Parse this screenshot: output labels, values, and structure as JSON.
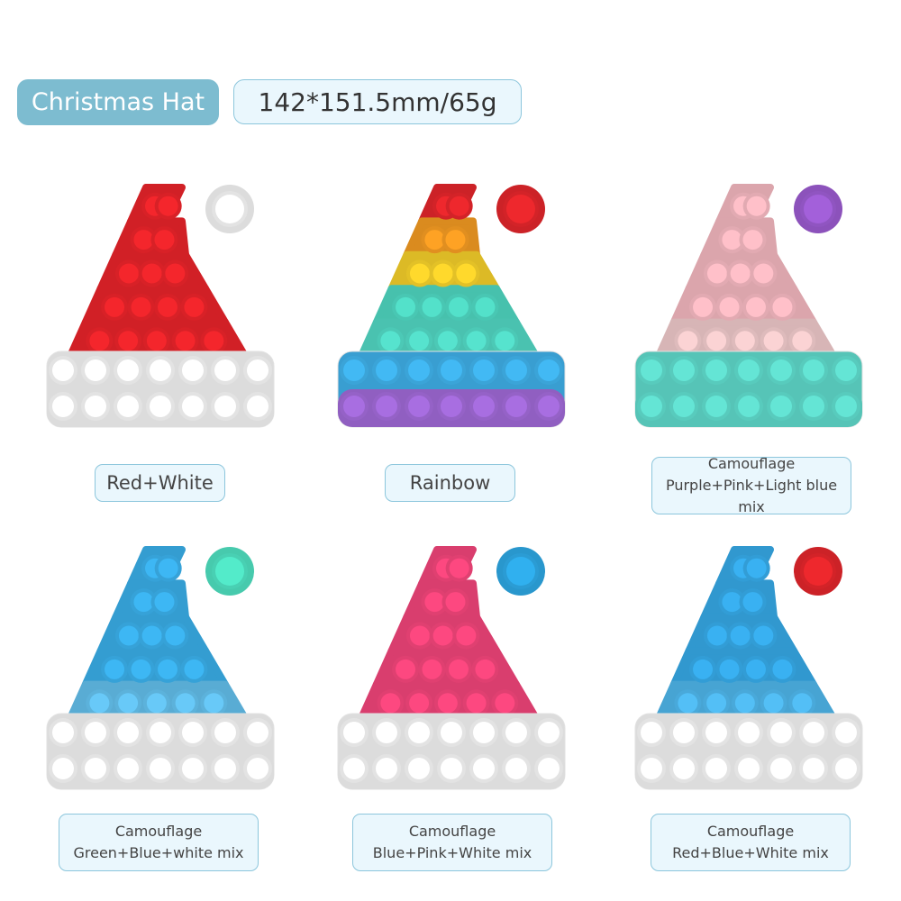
{
  "header": {
    "title": "Christmas Hat",
    "spec": "142*151.5mm/65g"
  },
  "products": [
    {
      "lines": [
        "Red+White"
      ],
      "rows": [
        "#e8242a",
        "#e8242a",
        "#e8242a",
        "#e8242a",
        "#e8242a"
      ],
      "band": [
        "#f4f4f4",
        "#f4f4f4"
      ],
      "bobble": "#f4f4f4"
    },
    {
      "lines": [
        "Rainbow"
      ],
      "rows": [
        "#e3262b",
        "#f29a22",
        "#f4cf2a",
        "#4fd6c0",
        "#52d8c4"
      ],
      "band": [
        "#3fb0e8",
        "#a069d6"
      ],
      "bobble": "#e3262b"
    },
    {
      "lines": [
        "Camouflage",
        "Purple+Pink+Light blue mix"
      ],
      "rows": [
        "#f3b7bf",
        "#f3b7bf",
        "#f3b7bf",
        "#f3b7bf",
        "#efc9ca"
      ],
      "band": [
        "#5fdacb",
        "#5fdacb"
      ],
      "bobble": "#9b5bd0"
    },
    {
      "lines": [
        "Camouflage",
        "Green+Blue+white mix"
      ],
      "rows": [
        "#3aaee8",
        "#3aaee8",
        "#3aaee8",
        "#3aaee8",
        "#63bfec"
      ],
      "band": [
        "#f4f4f4",
        "#f4f4f4"
      ],
      "bobble": "#4fe0c0"
    },
    {
      "lines": [
        "Camouflage",
        "Blue+Pink+White mix"
      ],
      "rows": [
        "#f1457a",
        "#f1457a",
        "#f1457a",
        "#f1457a",
        "#f1457a"
      ],
      "band": [
        "#f4f4f4",
        "#f4f4f4"
      ],
      "bobble": "#2ea8e4"
    },
    {
      "lines": [
        "Camouflage",
        "Red+Blue+White mix"
      ],
      "rows": [
        "#36a9e6",
        "#36a9e6",
        "#36a9e6",
        "#36a9e6",
        "#4fb6ea"
      ],
      "band": [
        "#f4f4f4",
        "#f4f4f4"
      ],
      "bobble": "#e3262b"
    }
  ]
}
